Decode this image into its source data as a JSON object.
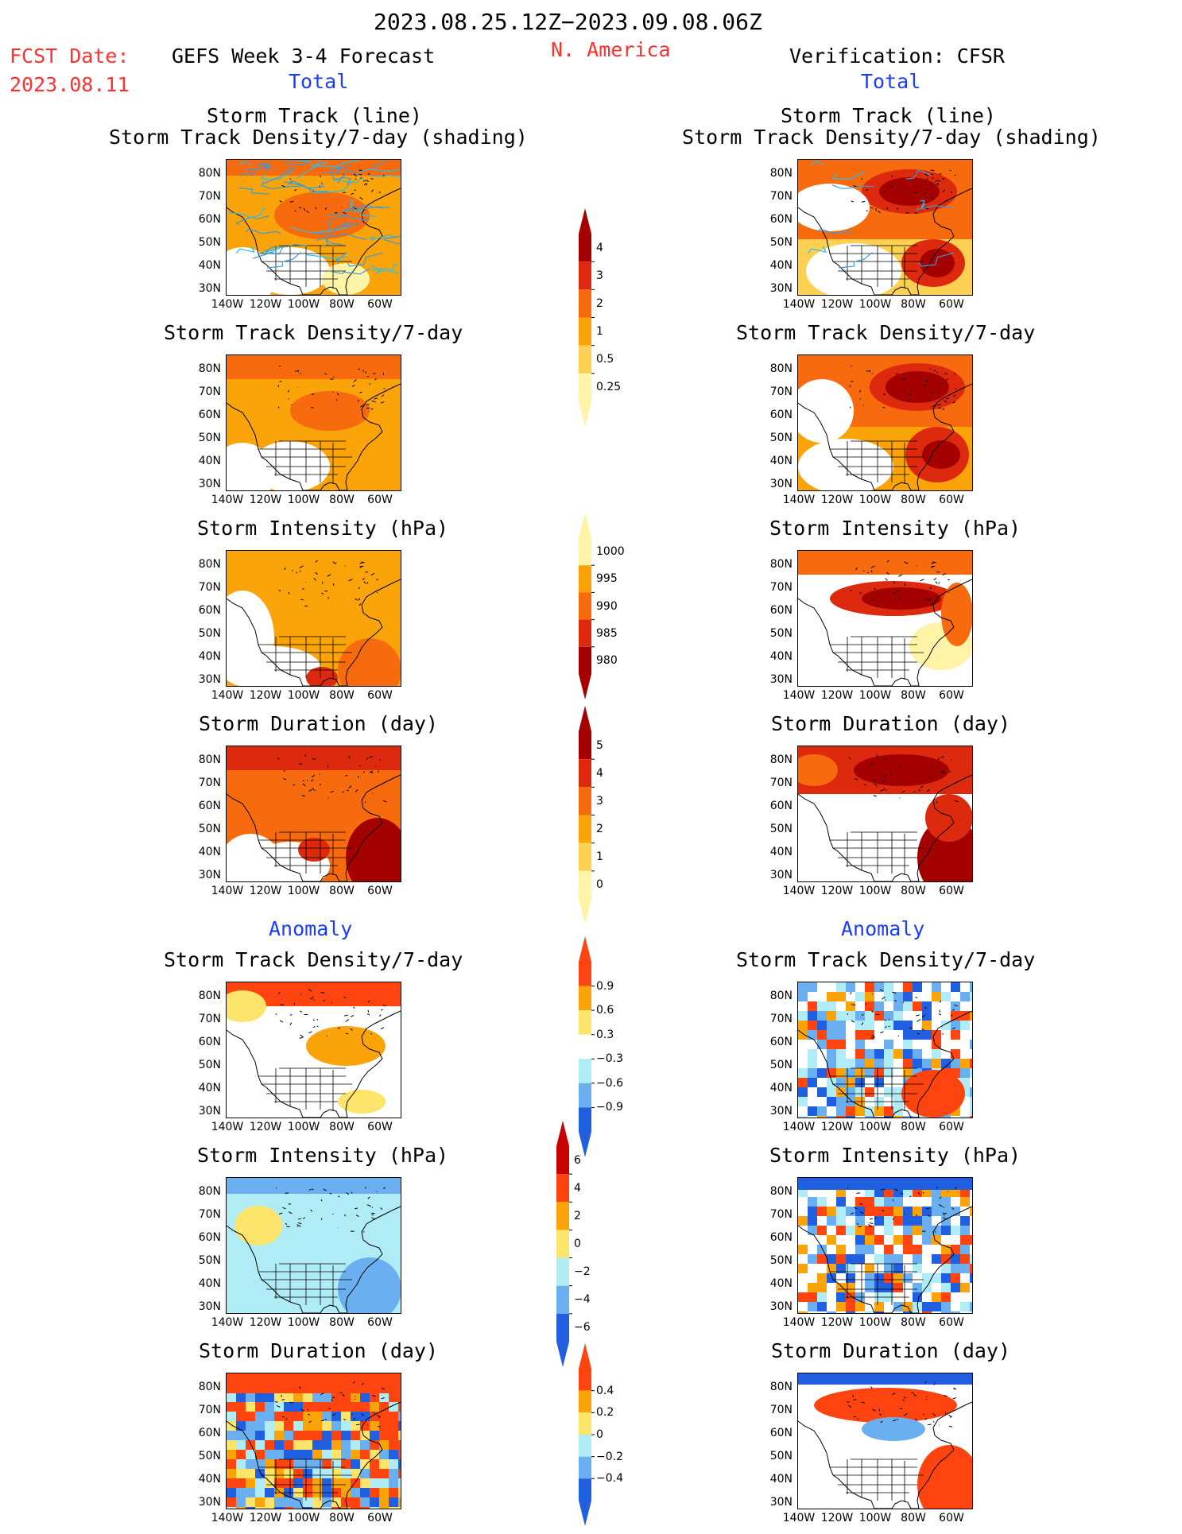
{
  "header": {
    "period": "2023.08.25.12Z−2023.09.08.06Z",
    "region": "N. America",
    "fcst_label": "FCST Date:",
    "fcst_date": "2023.08.11",
    "left_title": "GEFS Week 3-4 Forecast",
    "right_title": "Verification: CFSR",
    "left_total": "Total",
    "right_total": "Total",
    "left_anomaly": "Anomaly",
    "right_anomaly": "Anomaly"
  },
  "panel_titles": {
    "track_line": "Storm Track (line)",
    "track_shading": "Storm Track Density/7-day (shading)",
    "density": "Storm Track Density/7-day",
    "intensity": "Storm Intensity (hPa)",
    "duration": "Storm Duration (day)"
  },
  "axes": {
    "lat_labels": [
      "80N",
      "70N",
      "60N",
      "50N",
      "40N",
      "30N"
    ],
    "lon_labels": [
      "140W",
      "120W",
      "100W",
      "80W",
      "60W"
    ]
  },
  "colorbars": [
    {
      "id": "density",
      "labels": [
        "4",
        "3",
        "2",
        "1",
        "0.5",
        "0.25"
      ],
      "colors": [
        "#a50000",
        "#dd2a0e",
        "#f86a0e",
        "#fba40a",
        "#fcd050",
        "#fff3a8"
      ]
    },
    {
      "id": "intensity",
      "labels": [
        "1000",
        "995",
        "990",
        "985",
        "980"
      ],
      "colors": [
        "#fff3a8",
        "#fba40a",
        "#f86a0e",
        "#dd2a0e",
        "#a50000"
      ]
    },
    {
      "id": "duration",
      "labels": [
        "5",
        "4",
        "3",
        "2",
        "1",
        "0"
      ],
      "colors": [
        "#a50000",
        "#dd2a0e",
        "#f86a0e",
        "#fba40a",
        "#fcd050",
        "#fff3a8"
      ]
    },
    {
      "id": "anom_density",
      "labels": [
        "0.9",
        "0.6",
        "0.3",
        "−0.3",
        "−0.6",
        "−0.9"
      ],
      "colors": [
        "#ff4410",
        "#fba40a",
        "#fde46a",
        "#ffffff",
        "#b0ecf6",
        "#6ab0f0",
        "#2060e0"
      ]
    },
    {
      "id": "anom_intensity",
      "labels": [
        "6",
        "4",
        "2",
        "0",
        "−2",
        "−4",
        "−6"
      ],
      "colors": [
        "#c80000",
        "#ff4410",
        "#fba40a",
        "#fde46a",
        "#b0ecf6",
        "#6ab0f0",
        "#2060e0"
      ]
    },
    {
      "id": "anom_duration",
      "labels": [
        "0.4",
        "0.2",
        "0",
        "−0.2",
        "−0.4"
      ],
      "colors": [
        "#ff4410",
        "#fba40a",
        "#fde46a",
        "#b0ecf6",
        "#6ab0f0",
        "#2060e0"
      ]
    }
  ]
}
